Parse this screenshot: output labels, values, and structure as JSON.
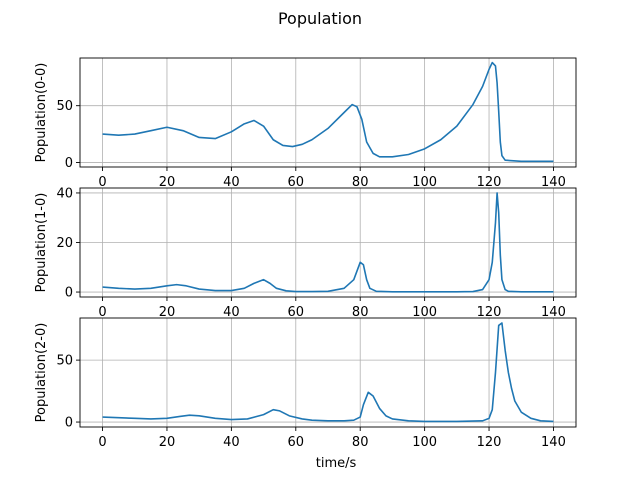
{
  "figure": {
    "title": "Population"
  },
  "chart_data": [
    {
      "type": "line",
      "title": "",
      "xlabel": "",
      "ylabel": "Population(0-0)",
      "xlim": [
        -7,
        147
      ],
      "ylim": [
        -4,
        92
      ],
      "xticks": [
        0,
        20,
        40,
        60,
        80,
        100,
        120,
        140
      ],
      "yticks": [
        0,
        50
      ],
      "grid": true,
      "color": "#1f77b4",
      "series": [
        {
          "x": [
            0,
            5,
            10,
            15,
            20,
            25,
            30,
            35,
            40,
            44,
            47,
            50,
            53,
            56,
            59,
            62,
            65,
            70,
            75,
            77.5,
            79,
            80.5,
            82,
            84,
            86,
            90,
            95,
            100,
            105,
            110,
            115,
            118,
            120,
            121,
            122,
            122.5,
            123,
            123.5,
            124,
            125,
            130,
            140
          ],
          "y": [
            25,
            24,
            25,
            28,
            31,
            28,
            22,
            21,
            27,
            34,
            37,
            32,
            20,
            15,
            14,
            16,
            20,
            30,
            44,
            51,
            49,
            38,
            18,
            8,
            5,
            5,
            7,
            12,
            20,
            32,
            51,
            67,
            82,
            88,
            85,
            70,
            45,
            18,
            6,
            2,
            1,
            1
          ]
        }
      ]
    },
    {
      "type": "line",
      "title": "",
      "xlabel": "",
      "ylabel": "Population(1-0)",
      "xlim": [
        -7,
        147
      ],
      "ylim": [
        -2,
        42
      ],
      "xticks": [
        0,
        20,
        40,
        60,
        80,
        100,
        120,
        140
      ],
      "yticks": [
        0,
        20,
        40
      ],
      "grid": true,
      "color": "#1f77b4",
      "series": [
        {
          "x": [
            0,
            5,
            10,
            15,
            20,
            23,
            26,
            30,
            35,
            40,
            44,
            47,
            50,
            52,
            54,
            57,
            60,
            65,
            70,
            75,
            78,
            80,
            81,
            82,
            83,
            85,
            90,
            100,
            110,
            115,
            118,
            120,
            121,
            122,
            122.5,
            123,
            123.5,
            124,
            125,
            126,
            130,
            140
          ],
          "y": [
            2,
            1.5,
            1.2,
            1.5,
            2.5,
            3,
            2.5,
            1.2,
            0.6,
            0.6,
            1.5,
            3.5,
            5,
            3.5,
            1.5,
            0.5,
            0.2,
            0.2,
            0.3,
            1.5,
            5,
            12,
            11,
            5,
            1.5,
            0.3,
            0.1,
            0.1,
            0.1,
            0.2,
            1,
            5,
            12,
            28,
            40,
            32,
            15,
            5,
            1,
            0.3,
            0.1,
            0.1
          ]
        }
      ]
    },
    {
      "type": "line",
      "title": "",
      "xlabel": "time/s",
      "ylabel": "Population(2-0)",
      "xlim": [
        -7,
        147
      ],
      "ylim": [
        -4,
        84
      ],
      "xticks": [
        0,
        20,
        40,
        60,
        80,
        100,
        120,
        140
      ],
      "yticks": [
        0,
        50
      ],
      "grid": true,
      "color": "#1f77b4",
      "series": [
        {
          "x": [
            0,
            5,
            10,
            15,
            20,
            24,
            27,
            30,
            35,
            40,
            45,
            50,
            53,
            55,
            58,
            62,
            65,
            70,
            75,
            78,
            80,
            81,
            82.5,
            84,
            86,
            88,
            90,
            95,
            100,
            110,
            118,
            120,
            121,
            122,
            123,
            124,
            125,
            126,
            127,
            128,
            130,
            133,
            136,
            140
          ],
          "y": [
            4,
            3.5,
            3,
            2.5,
            3,
            4.5,
            5.5,
            5,
            3,
            2,
            2.5,
            6,
            10,
            9,
            5,
            2.5,
            1.5,
            1,
            1,
            1.5,
            4,
            14,
            24,
            21,
            11,
            5,
            2.5,
            1,
            0.5,
            0.5,
            1,
            3,
            10,
            40,
            78,
            80,
            58,
            40,
            27,
            17,
            8,
            3,
            1,
            0.5
          ]
        }
      ]
    }
  ]
}
